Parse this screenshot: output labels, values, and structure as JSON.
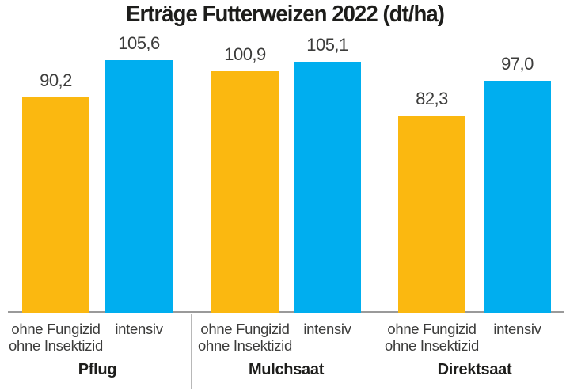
{
  "title": "Erträge Futterweizen 2022 (dt/ha)",
  "chart_data": {
    "type": "bar",
    "title": "Erträge Futterweizen 2022 (dt/ha)",
    "unit": "dt/ha",
    "ylim": [
      0,
      110
    ],
    "grid": false,
    "legend": "none",
    "value_labels_shown": true,
    "decimal_format": "comma",
    "colors": {
      "ohne": "#fbb810",
      "intensiv": "#00aeef"
    },
    "text_color": "#3c3c3b",
    "axis_line_color": "#9a9a9a",
    "categories": [
      "Pflug",
      "Mulchsaat",
      "Direktsaat"
    ],
    "series": [
      {
        "name": "ohne Fungizid ohne Insektizid",
        "values": [
          90.2,
          100.9,
          82.3
        ]
      },
      {
        "name": "intensiv",
        "values": [
          105.6,
          105.1,
          97.0
        ]
      }
    ],
    "groups": [
      {
        "name": "Pflug",
        "bars": [
          {
            "series": "ohne Fungizid ohne Insektizid",
            "label_lines": [
              "ohne Fungizid",
              "ohne Insektizid"
            ],
            "value": 90.2,
            "display": "90,2",
            "color_key": "ohne"
          },
          {
            "series": "intensiv",
            "label_lines": [
              "intensiv"
            ],
            "value": 105.6,
            "display": "105,6",
            "color_key": "intensiv"
          }
        ]
      },
      {
        "name": "Mulchsaat",
        "bars": [
          {
            "series": "ohne Fungizid ohne Insektizid",
            "label_lines": [
              "ohne Fungizid",
              "ohne Insektizid"
            ],
            "value": 100.9,
            "display": "100,9",
            "color_key": "ohne"
          },
          {
            "series": "intensiv",
            "label_lines": [
              "intensiv"
            ],
            "value": 105.1,
            "display": "105,1",
            "color_key": "intensiv"
          }
        ]
      },
      {
        "name": "Direktsaat",
        "bars": [
          {
            "series": "ohne Fungizid ohne Insektizid",
            "label_lines": [
              "ohne Fungizid",
              "ohne Insektizid"
            ],
            "value": 82.3,
            "display": "82,3",
            "color_key": "ohne"
          },
          {
            "series": "intensiv",
            "label_lines": [
              "intensiv"
            ],
            "value": 97.0,
            "display": "97,0",
            "color_key": "intensiv"
          }
        ]
      }
    ]
  }
}
